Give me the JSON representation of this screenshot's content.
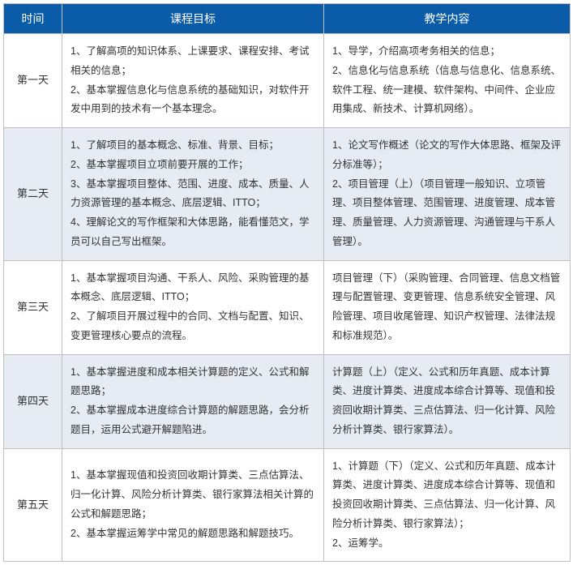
{
  "colors": {
    "header_bg": "#0b5ca8",
    "header_text": "#ffffff",
    "border": "#bfbfbf",
    "even_row_bg": "#e7ebf4",
    "odd_row_bg": "#ffffff",
    "body_text": "#333333"
  },
  "headers": {
    "time": "时间",
    "objective": "课程目标",
    "content": "教学内容"
  },
  "rows": [
    {
      "time": "第一天",
      "objectives": [
        "1、了解高项的知识体系、上课要求、课程安排、考试相关的信息；",
        "2、基本掌握信息化与信息系统的基础知识，对软件开发中用到的技术有一个基本理念。"
      ],
      "contents": [
        "1、导学，介绍高项考务相关的信息；",
        "2、信息化与信息系统（信息与信息化、信息系统、软件工程、统一建模、软件架构、中间件、企业应用集成、新技术、计算机网络）。"
      ]
    },
    {
      "time": "第二天",
      "objectives": [
        "1、了解项目的基本概念、标准、背景、目标；",
        "2、基本掌握项目立项前要开展的工作；",
        "3、基本掌握项目整体、范围、进度、成本、质量、人力资源管理的基本概念、底层逻辑、ITTO；",
        "4、理解论文的写作框架和大体思路，能看懂范文，学员可以自己写出框架。"
      ],
      "contents": [
        "1、论文写作概述（论文的写作大体思路、框架及评分标准等）；",
        "2、项目管理（上）（项目管理一般知识、立项管理、项目整体管理、范围管理、进度管理、成本管理、质量管理、人力资源管理、沟通管理与干系人管理）。"
      ]
    },
    {
      "time": "第三天",
      "objectives": [
        "1、基本掌握项目沟通、干系人、风险、采购管理的基本概念、底层逻辑、ITTO；",
        "2、了解项目开展过程中的合同、文档与配置、知识、变更管理核心要点的流程。"
      ],
      "contents": [
        "项目管理（下）（采购管理、合同管理、信息文档管理与配置管理、变更管理、信息系统安全管理、风险管理、项目收尾管理、知识产权管理、法律法规和标准规范）。"
      ]
    },
    {
      "time": "第四天",
      "objectives": [
        "1、基本掌握进度和成本相关计算题的定义、公式和解题思路；",
        "2、基本掌握成本进度综合计算题的解题思路，会分析题目，运用公式避开解题陷进。"
      ],
      "contents": [
        "计算题（上）（定义、公式和历年真题、成本计算类、进度计算类、进度成本综合计算等、现值和投资回收期计算类、三点估算法、归一化计算、风险分析计算类、银行家算法）。"
      ]
    },
    {
      "time": "第五天",
      "objectives": [
        "1、基本掌握现值和投资回收期计算类、三点估算法、归一化计算、风险分析计算类、银行家算法相关计算的公式和解题思路；",
        "2、基本掌握运筹学中常见的解题思路和解题技巧。"
      ],
      "contents": [
        "1、计算题（下）（定义、公式和历年真题、成本计算类、进度计算类、进度成本综合计算等、现值和投资回收期计算类、三点估算法、归一化计算、风险分析计算类、银行家算法）；",
        "2、运筹学。"
      ]
    }
  ]
}
